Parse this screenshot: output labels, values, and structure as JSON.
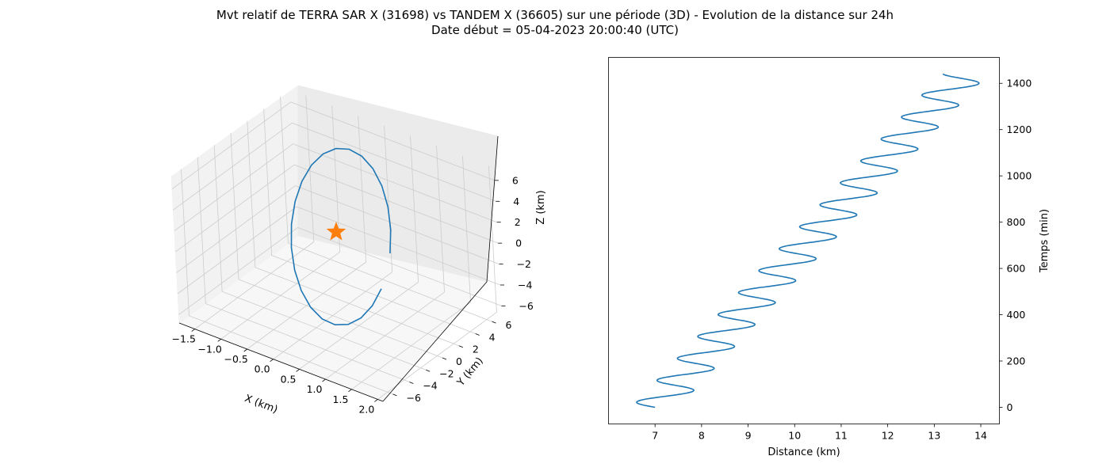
{
  "title": "Mvt relatif de TERRA SAR X (31698) vs TANDEM X (36605) sur une période (3D) - Evolution de la distance sur 24h",
  "subtitle": "Date début = 05-04-2023 20:00:40 (UTC)",
  "colors": {
    "series": "#1f77b4",
    "marker": "#ff7f0e",
    "pane": "#f2f2f2",
    "grid": "#cccccc"
  },
  "chart_data": [
    {
      "type": "line",
      "projection": "3d",
      "xlabel": "X (km)",
      "ylabel": "Y (km)",
      "zlabel": "Z (km)",
      "xlim": [
        -1.8,
        2.1
      ],
      "ylim": [
        -7.2,
        7.2
      ],
      "zlim": [
        -6.8,
        7.2
      ],
      "xticks": [
        "−1.5",
        "−1.0",
        "−0.5",
        "0.0",
        "0.5",
        "1.0",
        "1.5",
        "2.0"
      ],
      "yticks": [
        "−6",
        "−4",
        "−2",
        "0",
        "2",
        "4",
        "6"
      ],
      "zticks": [
        "−6",
        "−4",
        "−2",
        "0",
        "2",
        "4",
        "6"
      ],
      "grid": true,
      "series": [
        {
          "x": [
            1.45,
            1.28,
            1.02,
            0.68,
            0.28,
            -0.14,
            -0.55,
            -0.92,
            -1.22,
            -1.43,
            -1.55,
            -1.57,
            -1.48,
            -1.3,
            -1.03,
            -0.69,
            -0.29,
            0.13,
            0.54,
            0.91,
            1.21,
            1.42,
            1.54
          ],
          "y": [
            2.0,
            -0.1,
            -2.1,
            -3.9,
            -5.3,
            -6.2,
            -6.6,
            -6.4,
            -5.7,
            -4.5,
            -2.9,
            -1.0,
            1.0,
            2.9,
            4.5,
            5.7,
            6.4,
            6.6,
            6.2,
            5.3,
            3.9,
            2.1,
            0.1
          ],
          "z": [
            -5.6,
            -6.2,
            -6.4,
            -6.1,
            -5.3,
            -4.1,
            -2.5,
            -0.7,
            1.1,
            2.8,
            4.2,
            5.4,
            6.1,
            6.5,
            6.4,
            5.8,
            4.8,
            3.5,
            1.9,
            0.1,
            -1.7,
            -3.3,
            -4.6
          ]
        }
      ],
      "marker": {
        "shape": "star",
        "x": 0,
        "y": 0,
        "z": 0
      }
    },
    {
      "type": "line",
      "xlabel": "Distance (km)",
      "ylabel": "Temps (min)",
      "xlim": [
        6.0,
        14.4
      ],
      "ylim": [
        -72,
        1512
      ],
      "xticks": [
        7,
        8,
        9,
        10,
        11,
        12,
        13,
        14
      ],
      "yticks": [
        0,
        200,
        400,
        600,
        800,
        1000,
        1200,
        1400
      ],
      "y_axis_side": "right",
      "series": [
        {
          "trend_start": 7.0,
          "trend_end": 13.65,
          "amplitude": 0.5,
          "period_min": 94.8,
          "t_end_min": 1440
        }
      ]
    }
  ]
}
